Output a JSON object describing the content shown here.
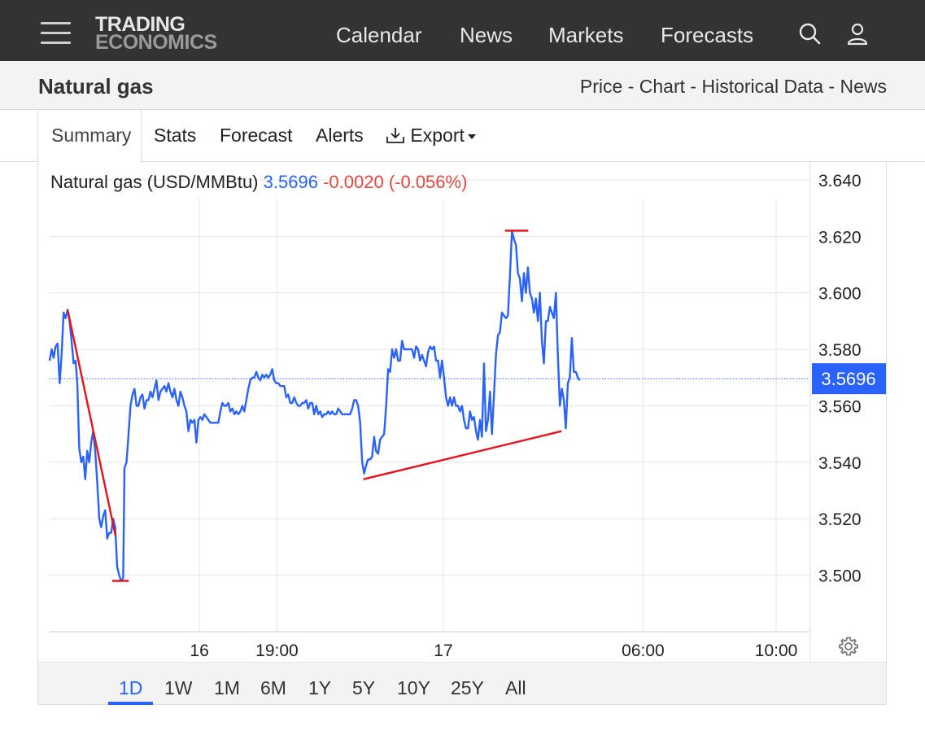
{
  "header": {
    "logo_line1": "TRADING",
    "logo_line2": "ECONOMICS",
    "nav": [
      "Calendar",
      "News",
      "Markets",
      "Forecasts"
    ],
    "icons": [
      "menu-icon",
      "search-icon",
      "user-icon"
    ]
  },
  "subheader": {
    "title": "Natural gas",
    "links": [
      "Price",
      "Chart",
      "Historical Data",
      "News"
    ],
    "separator": " - "
  },
  "tabs": [
    "Summary",
    "Stats",
    "Forecast",
    "Alerts",
    "Export"
  ],
  "quote": {
    "name": "Natural gas (USD/MMBtu)",
    "price": "3.5696",
    "change": "-0.0020",
    "change_pct": "(-0.056%)"
  },
  "ranges": [
    "1D",
    "1W",
    "1M",
    "6M",
    "1Y",
    "5Y",
    "10Y",
    "25Y",
    "All"
  ],
  "active_range": "1D",
  "colors": {
    "line": "#2962ff",
    "drawing": "#e8111c",
    "down": "#e5473f",
    "header": "#333333"
  },
  "chart_data": {
    "type": "line",
    "y_ticks": [
      "3.500",
      "3.520",
      "3.540",
      "3.560",
      "3.580",
      "3.600",
      "3.620",
      "3.640"
    ],
    "ylim": [
      3.48,
      3.642
    ],
    "x_ticks": [
      {
        "label": "16",
        "t": 16.67
      },
      {
        "label": "19:00",
        "t": 19
      },
      {
        "label": "17",
        "t": 24
      },
      {
        "label": "06:00",
        "t": 30
      },
      {
        "label": "10:00",
        "t": 34
      }
    ],
    "xlim": [
      12.17,
      35
    ],
    "last_price": 3.5696,
    "last_label": "3.5696",
    "series": [
      {
        "values": [
          [
            12.17,
            3.576
          ],
          [
            12.23,
            3.58
          ],
          [
            12.29,
            3.577
          ],
          [
            12.35,
            3.581
          ],
          [
            12.41,
            3.582
          ],
          [
            12.47,
            3.568
          ],
          [
            12.53,
            3.578
          ],
          [
            12.59,
            3.593
          ],
          [
            12.65,
            3.591
          ],
          [
            12.71,
            3.594
          ],
          [
            12.77,
            3.59
          ],
          [
            12.83,
            3.583
          ],
          [
            12.89,
            3.575
          ],
          [
            12.95,
            3.576
          ],
          [
            13.0,
            3.568
          ],
          [
            13.06,
            3.545
          ],
          [
            13.12,
            3.54
          ],
          [
            13.18,
            3.542
          ],
          [
            13.24,
            3.534
          ],
          [
            13.3,
            3.544
          ],
          [
            13.36,
            3.54
          ],
          [
            13.42,
            3.547
          ],
          [
            13.48,
            3.551
          ],
          [
            13.54,
            3.544
          ],
          [
            13.6,
            3.533
          ],
          [
            13.66,
            3.52
          ],
          [
            13.72,
            3.517
          ],
          [
            13.78,
            3.521
          ],
          [
            13.84,
            3.523
          ],
          [
            13.9,
            3.513
          ],
          [
            13.96,
            3.515
          ],
          [
            14.02,
            3.515
          ],
          [
            14.08,
            3.52
          ],
          [
            14.14,
            3.517
          ],
          [
            14.2,
            3.503
          ],
          [
            14.26,
            3.5
          ],
          [
            14.32,
            3.498
          ],
          [
            14.38,
            3.499
          ],
          [
            14.42,
            3.538
          ],
          [
            14.48,
            3.54
          ],
          [
            14.54,
            3.55
          ],
          [
            14.6,
            3.56
          ],
          [
            14.66,
            3.564
          ],
          [
            14.72,
            3.566
          ],
          [
            14.78,
            3.56
          ],
          [
            14.84,
            3.56
          ],
          [
            14.9,
            3.563
          ],
          [
            14.96,
            3.564
          ],
          [
            15.02,
            3.559
          ],
          [
            15.08,
            3.562
          ],
          [
            15.14,
            3.562
          ],
          [
            15.2,
            3.565
          ],
          [
            15.26,
            3.563
          ],
          [
            15.32,
            3.566
          ],
          [
            15.38,
            3.569
          ],
          [
            15.44,
            3.562
          ],
          [
            15.5,
            3.565
          ],
          [
            15.56,
            3.566
          ],
          [
            15.62,
            3.567
          ],
          [
            15.68,
            3.565
          ],
          [
            15.74,
            3.568
          ],
          [
            15.8,
            3.565
          ],
          [
            15.86,
            3.563
          ],
          [
            15.92,
            3.566
          ],
          [
            15.98,
            3.562
          ],
          [
            16.04,
            3.56
          ],
          [
            16.1,
            3.565
          ],
          [
            16.16,
            3.563
          ],
          [
            16.22,
            3.56
          ],
          [
            16.28,
            3.558
          ],
          [
            16.34,
            3.551
          ],
          [
            16.4,
            3.555
          ],
          [
            16.46,
            3.554
          ],
          [
            16.52,
            3.555
          ],
          [
            16.58,
            3.547
          ],
          [
            16.64,
            3.555
          ],
          [
            16.7,
            3.556
          ],
          [
            16.76,
            3.555
          ],
          [
            16.82,
            3.557
          ],
          [
            16.88,
            3.556
          ],
          [
            16.94,
            3.555
          ],
          [
            17.0,
            3.554
          ],
          [
            17.06,
            3.554
          ],
          [
            17.12,
            3.554
          ],
          [
            17.18,
            3.554
          ],
          [
            17.24,
            3.554
          ],
          [
            17.3,
            3.558
          ],
          [
            17.36,
            3.561
          ],
          [
            17.42,
            3.56
          ],
          [
            17.48,
            3.56
          ],
          [
            17.54,
            3.561
          ],
          [
            17.6,
            3.558
          ],
          [
            17.66,
            3.559
          ],
          [
            17.72,
            3.557
          ],
          [
            17.78,
            3.558
          ],
          [
            17.84,
            3.557
          ],
          [
            17.9,
            3.558
          ],
          [
            17.96,
            3.56
          ],
          [
            18.02,
            3.558
          ],
          [
            18.08,
            3.562
          ],
          [
            18.14,
            3.566
          ],
          [
            18.2,
            3.569
          ],
          [
            18.26,
            3.57
          ],
          [
            18.32,
            3.57
          ],
          [
            18.38,
            3.572
          ],
          [
            18.44,
            3.57
          ],
          [
            18.5,
            3.569
          ],
          [
            18.56,
            3.571
          ],
          [
            18.62,
            3.57
          ],
          [
            18.68,
            3.571
          ],
          [
            18.74,
            3.57
          ],
          [
            18.8,
            3.571
          ],
          [
            18.86,
            3.573
          ],
          [
            18.92,
            3.569
          ],
          [
            18.98,
            3.568
          ],
          [
            19.04,
            3.568
          ],
          [
            19.1,
            3.567
          ],
          [
            19.16,
            3.567
          ],
          [
            19.22,
            3.567
          ],
          [
            19.28,
            3.563
          ],
          [
            19.34,
            3.564
          ],
          [
            19.4,
            3.561
          ],
          [
            19.46,
            3.561
          ],
          [
            19.52,
            3.563
          ],
          [
            19.58,
            3.561
          ],
          [
            19.64,
            3.56
          ],
          [
            19.7,
            3.56
          ],
          [
            19.76,
            3.561
          ],
          [
            19.82,
            3.561
          ],
          [
            19.88,
            3.562
          ],
          [
            19.94,
            3.559
          ],
          [
            20.0,
            3.561
          ],
          [
            20.06,
            3.561
          ],
          [
            20.12,
            3.557
          ],
          [
            20.18,
            3.56
          ],
          [
            20.24,
            3.557
          ],
          [
            20.3,
            3.558
          ],
          [
            20.36,
            3.556
          ],
          [
            20.42,
            3.557
          ],
          [
            20.48,
            3.557
          ],
          [
            20.54,
            3.558
          ],
          [
            20.6,
            3.557
          ],
          [
            20.66,
            3.558
          ],
          [
            20.72,
            3.557
          ],
          [
            20.78,
            3.557
          ],
          [
            20.84,
            3.559
          ],
          [
            20.9,
            3.558
          ],
          [
            20.96,
            3.557
          ],
          [
            21.02,
            3.557
          ],
          [
            21.08,
            3.557
          ],
          [
            21.14,
            3.557
          ],
          [
            21.2,
            3.557
          ],
          [
            21.26,
            3.559
          ],
          [
            21.32,
            3.562
          ],
          [
            21.38,
            3.562
          ],
          [
            21.44,
            3.56
          ],
          [
            21.5,
            3.554
          ],
          [
            21.56,
            3.54
          ],
          [
            21.62,
            3.536
          ],
          [
            21.68,
            3.539
          ],
          [
            21.74,
            3.541
          ],
          [
            21.8,
            3.541
          ],
          [
            21.86,
            3.542
          ],
          [
            21.92,
            3.549
          ],
          [
            21.98,
            3.544
          ],
          [
            22.04,
            3.543
          ],
          [
            22.1,
            3.548
          ],
          [
            22.16,
            3.549
          ],
          [
            22.22,
            3.55
          ],
          [
            22.28,
            3.56
          ],
          [
            22.34,
            3.573
          ],
          [
            22.4,
            3.572
          ],
          [
            22.46,
            3.58
          ],
          [
            22.52,
            3.577
          ],
          [
            22.58,
            3.58
          ],
          [
            22.64,
            3.576
          ],
          [
            22.7,
            3.576
          ],
          [
            22.76,
            3.583
          ],
          [
            22.82,
            3.58
          ],
          [
            22.88,
            3.58
          ],
          [
            22.94,
            3.58
          ],
          [
            23.0,
            3.58
          ],
          [
            23.06,
            3.58
          ],
          [
            23.12,
            3.577
          ],
          [
            23.18,
            3.581
          ],
          [
            23.24,
            3.58
          ],
          [
            23.3,
            3.576
          ],
          [
            23.36,
            3.578
          ],
          [
            23.42,
            3.576
          ],
          [
            23.48,
            3.574
          ],
          [
            23.54,
            3.579
          ],
          [
            23.6,
            3.581
          ],
          [
            23.66,
            3.58
          ],
          [
            23.72,
            3.581
          ],
          [
            23.78,
            3.576
          ],
          [
            23.84,
            3.576
          ],
          [
            23.9,
            3.57
          ],
          [
            23.96,
            3.576
          ],
          [
            24.02,
            3.57
          ],
          [
            24.08,
            3.563
          ],
          [
            24.14,
            3.56
          ],
          [
            24.2,
            3.563
          ],
          [
            24.26,
            3.56
          ],
          [
            24.32,
            3.563
          ],
          [
            24.38,
            3.56
          ],
          [
            24.44,
            3.56
          ],
          [
            24.5,
            3.558
          ],
          [
            24.56,
            3.56
          ],
          [
            24.62,
            3.555
          ],
          [
            24.68,
            3.552
          ],
          [
            24.74,
            3.552
          ],
          [
            24.8,
            3.558
          ],
          [
            24.86,
            3.555
          ],
          [
            24.92,
            3.556
          ],
          [
            24.98,
            3.551
          ],
          [
            25.04,
            3.548
          ],
          [
            25.1,
            3.555
          ],
          [
            25.16,
            3.549
          ],
          [
            25.22,
            3.575
          ],
          [
            25.28,
            3.551
          ],
          [
            25.34,
            3.555
          ],
          [
            25.4,
            3.565
          ],
          [
            25.46,
            3.55
          ],
          [
            25.52,
            3.564
          ],
          [
            25.58,
            3.578
          ],
          [
            25.64,
            3.585
          ],
          [
            25.7,
            3.586
          ],
          [
            25.76,
            3.593
          ],
          [
            25.82,
            3.592
          ],
          [
            25.88,
            3.591
          ],
          [
            25.94,
            3.592
          ],
          [
            26.0,
            3.606
          ],
          [
            26.06,
            3.622
          ],
          [
            26.12,
            3.619
          ],
          [
            26.18,
            3.617
          ],
          [
            26.24,
            3.607
          ],
          [
            26.3,
            3.605
          ],
          [
            26.36,
            3.597
          ],
          [
            26.42,
            3.607
          ],
          [
            26.48,
            3.6
          ],
          [
            26.54,
            3.609
          ],
          [
            26.6,
            3.6
          ],
          [
            26.66,
            3.598
          ],
          [
            26.72,
            3.593
          ],
          [
            26.78,
            3.598
          ],
          [
            26.84,
            3.59
          ],
          [
            26.9,
            3.6
          ],
          [
            26.96,
            3.583
          ],
          [
            27.02,
            3.575
          ],
          [
            27.08,
            3.59
          ],
          [
            27.14,
            3.59
          ],
          [
            27.2,
            3.595
          ],
          [
            27.26,
            3.593
          ],
          [
            27.32,
            3.591
          ],
          [
            27.38,
            3.6
          ],
          [
            27.44,
            3.578
          ],
          [
            27.5,
            3.56
          ],
          [
            27.56,
            3.566
          ],
          [
            27.62,
            3.562
          ],
          [
            27.68,
            3.552
          ],
          [
            27.74,
            3.568
          ],
          [
            27.8,
            3.57
          ],
          [
            27.86,
            3.584
          ],
          [
            27.92,
            3.572
          ],
          [
            27.98,
            3.572
          ],
          [
            28.04,
            3.57
          ],
          [
            28.1,
            3.569
          ]
        ]
      }
    ],
    "annotations": [
      {
        "type": "trendline",
        "from": [
          12.71,
          3.594
        ],
        "to": [
          14.15,
          3.514
        ]
      },
      {
        "type": "hline",
        "from": [
          14.05,
          3.498
        ],
        "to": [
          14.55,
          3.498
        ]
      },
      {
        "type": "trendline",
        "from": [
          21.6,
          3.534
        ],
        "to": [
          27.55,
          3.551
        ]
      },
      {
        "type": "hline",
        "from": [
          25.85,
          3.622
        ],
        "to": [
          26.55,
          3.622
        ]
      }
    ]
  }
}
